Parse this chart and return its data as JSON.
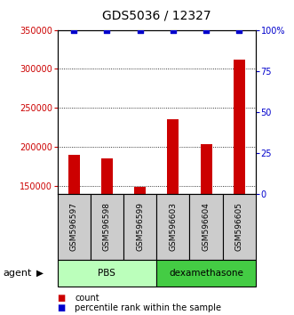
{
  "title": "GDS5036 / 12327",
  "samples": [
    "GSM596597",
    "GSM596598",
    "GSM596599",
    "GSM596603",
    "GSM596604",
    "GSM596605"
  ],
  "counts": [
    190000,
    185000,
    148500,
    235000,
    204000,
    312000
  ],
  "percentiles": [
    100,
    100,
    100,
    100,
    100,
    100
  ],
  "ylim_left": [
    140000,
    350000
  ],
  "yticks_left": [
    150000,
    200000,
    250000,
    300000,
    350000
  ],
  "ylim_right": [
    0,
    100
  ],
  "yticks_right": [
    0,
    25,
    50,
    75,
    100
  ],
  "bar_color_count": "#cc0000",
  "bar_color_pct": "#0000cc",
  "count_bar_width": 0.35,
  "left_tick_color": "#cc0000",
  "right_tick_color": "#0000cc",
  "sample_box_color": "#cccccc",
  "pbs_color": "#bbffbb",
  "dex_color": "#44cc44",
  "agent_label": "agent",
  "legend_count_label": "count",
  "legend_pct_label": "percentile rank within the sample",
  "group_ranges": [
    [
      -0.5,
      2.5,
      "PBS"
    ],
    [
      2.5,
      5.5,
      "dexamethasone"
    ]
  ]
}
